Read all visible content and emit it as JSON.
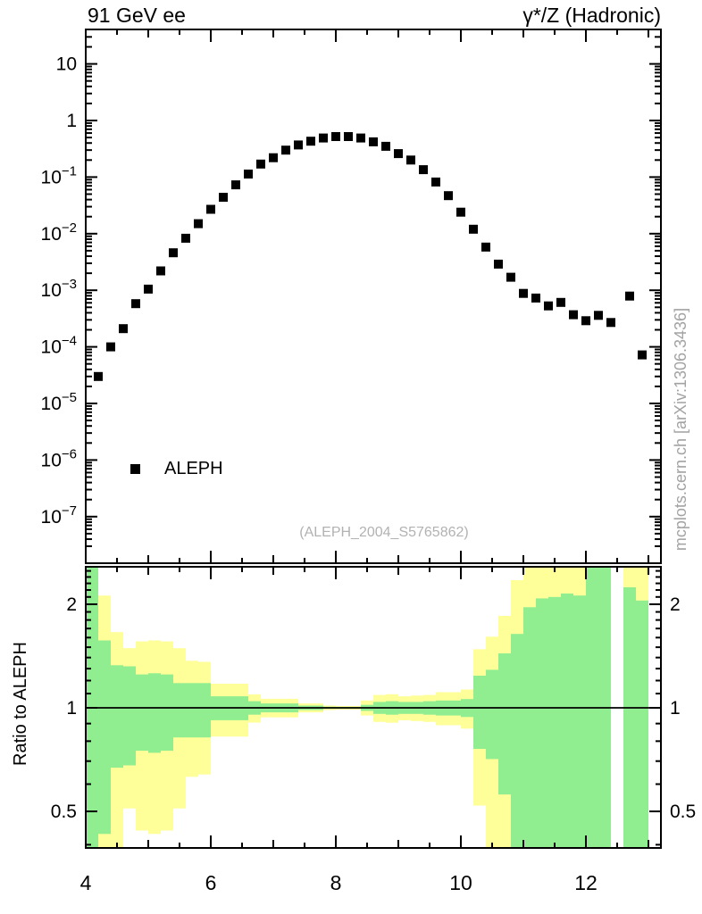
{
  "header": {
    "left": "91 GeV ee",
    "right": "γ*/Z (Hadronic)"
  },
  "watermark": "mcplots.cern.ch [arXiv:1306.3436]",
  "reference_label": "(ALEPH_2004_S5765862)",
  "legend": [
    {
      "label": "ALEPH",
      "marker": "filled-square",
      "color": "#000000"
    }
  ],
  "colors": {
    "band_outer": "#ffff99",
    "band_inner": "#90ee90",
    "axis": "#000000",
    "marker": "#000000"
  },
  "chart_data": [
    {
      "type": "scatter",
      "panel": "main",
      "yscale": "log",
      "xlim": [
        4,
        13.2
      ],
      "ylim": [
        1.5e-08,
        40
      ],
      "xticks_labeled": [
        4,
        6,
        8,
        10,
        12
      ],
      "ytick_exponents": [
        1,
        0,
        -1,
        -2,
        -3,
        -4,
        -5,
        -6,
        -7
      ],
      "grid": false,
      "series": [
        {
          "name": "ALEPH",
          "marker": "filled-square",
          "color": "#000000",
          "x": [
            4.2,
            4.4,
            4.6,
            4.8,
            5.0,
            5.2,
            5.4,
            5.6,
            5.8,
            6.0,
            6.2,
            6.4,
            6.6,
            6.8,
            7.0,
            7.2,
            7.4,
            7.6,
            7.8,
            8.0,
            8.2,
            8.4,
            8.6,
            8.8,
            9.0,
            9.2,
            9.4,
            9.6,
            9.8,
            10.0,
            10.2,
            10.4,
            10.6,
            10.8,
            11.0,
            11.2,
            11.4,
            11.6,
            11.8,
            12.0,
            12.2,
            12.4,
            12.7,
            12.9
          ],
          "y": [
            3e-05,
            0.0001,
            0.00021,
            0.00058,
            0.00105,
            0.0022,
            0.0046,
            0.0083,
            0.015,
            0.027,
            0.044,
            0.073,
            0.113,
            0.17,
            0.22,
            0.3,
            0.37,
            0.43,
            0.49,
            0.52,
            0.52,
            0.49,
            0.42,
            0.35,
            0.26,
            0.2,
            0.135,
            0.082,
            0.047,
            0.024,
            0.012,
            0.0058,
            0.0029,
            0.0017,
            0.00088,
            0.00073,
            0.00053,
            0.00061,
            0.00037,
            0.00029,
            0.00036,
            0.00027,
            0.00079,
            7.2e-05
          ]
        }
      ]
    },
    {
      "type": "band-ratio",
      "panel": "ratio",
      "ylabel": "Ratio to ALEPH",
      "yscale": "log",
      "ylim": [
        0.39,
        2.57
      ],
      "yticks": [
        0.5,
        1,
        2
      ],
      "bin_width": 0.2,
      "bands": {
        "outer_color": "#ffff99",
        "inner_color": "#90ee90",
        "outer_meaning": "total uncertainty",
        "inner_meaning": "statistical uncertainty"
      },
      "bins_format": "[x_low, outer_fractional_error, inner_fractional_error]; 0,0 = empty bin",
      "bins": [
        [
          4.0,
          2.5,
          2.0
        ],
        [
          4.2,
          1.12,
          0.57
        ],
        [
          4.4,
          0.66,
          0.33
        ],
        [
          4.6,
          0.49,
          0.32
        ],
        [
          4.8,
          0.56,
          0.25
        ],
        [
          5.0,
          0.57,
          0.26
        ],
        [
          5.2,
          0.56,
          0.25
        ],
        [
          5.4,
          0.49,
          0.18
        ],
        [
          5.6,
          0.37,
          0.18
        ],
        [
          5.8,
          0.36,
          0.18
        ],
        [
          6.0,
          0.175,
          0.08
        ],
        [
          6.2,
          0.175,
          0.08
        ],
        [
          6.4,
          0.175,
          0.08
        ],
        [
          6.6,
          0.094,
          0.045
        ],
        [
          6.8,
          0.062,
          0.03
        ],
        [
          7.0,
          0.062,
          0.03
        ],
        [
          7.2,
          0.062,
          0.03
        ],
        [
          7.4,
          0.03,
          0.015
        ],
        [
          7.6,
          0.03,
          0.015
        ],
        [
          7.8,
          0.015,
          0.007
        ],
        [
          8.0,
          0.012,
          0.006
        ],
        [
          8.2,
          0.012,
          0.006
        ],
        [
          8.4,
          0.05,
          0.02
        ],
        [
          8.6,
          0.09,
          0.04
        ],
        [
          8.8,
          0.095,
          0.045
        ],
        [
          9.0,
          0.08,
          0.04
        ],
        [
          9.2,
          0.085,
          0.04
        ],
        [
          9.4,
          0.09,
          0.045
        ],
        [
          9.6,
          0.11,
          0.05
        ],
        [
          9.8,
          0.11,
          0.05
        ],
        [
          10.0,
          0.13,
          0.06
        ],
        [
          10.2,
          0.48,
          0.24
        ],
        [
          10.4,
          0.61,
          0.29
        ],
        [
          10.6,
          0.85,
          0.44
        ],
        [
          10.8,
          1.35,
          0.64
        ],
        [
          11.0,
          1.7,
          0.96
        ],
        [
          11.2,
          1.8,
          1.08
        ],
        [
          11.4,
          1.9,
          1.1
        ],
        [
          11.6,
          1.85,
          1.15
        ],
        [
          11.8,
          1.9,
          1.12
        ],
        [
          12.0,
          2.5,
          1.7
        ],
        [
          12.2,
          2.5,
          1.8
        ],
        [
          12.4,
          0,
          0
        ],
        [
          12.6,
          2.0,
          1.24
        ],
        [
          12.8,
          2.0,
          1.05
        ],
        [
          13.0,
          0,
          0
        ]
      ]
    }
  ]
}
